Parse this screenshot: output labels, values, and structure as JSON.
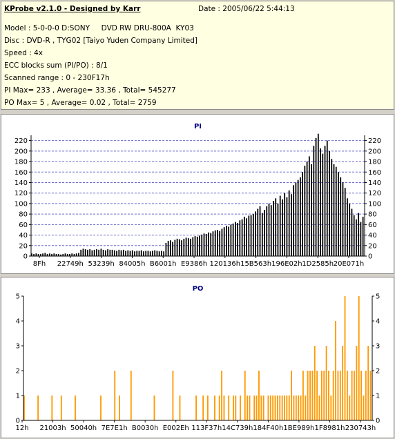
{
  "header": {
    "title": "KProbe v2.1.0 - Designed by Karr",
    "date": "Date : 2005/06/22 5:44:13",
    "lines": [
      "Model : 5-0-0-0 D:SONY     DVD RW DRU-800A  KY03",
      "Disc : DVD-R , TYG02 [Taiyo Yuden Company Limited]",
      "Speed : 4x",
      "ECC blocks sum (PI/PO) : 8/1",
      "Scanned range : 0 - 230F17h",
      "PI Max= 233 , Average= 33.36 , Total= 545277",
      "PO Max= 5 , Average= 0.02 , Total= 2759"
    ]
  },
  "colors": {
    "pi_bars": "#000000",
    "po_bars": "#ff9900",
    "grid": "#6a6acd",
    "info_bg": "#ffffe1",
    "title": "#00007f"
  },
  "chart_data": [
    {
      "type": "bar",
      "title": "PI",
      "xlabel": "",
      "ylabel": "",
      "ylim": [
        0,
        230
      ],
      "yticks": [
        0,
        20,
        40,
        60,
        80,
        100,
        120,
        140,
        160,
        180,
        200,
        220
      ],
      "x_tick_labels": [
        "8Fh",
        "22749h",
        "53239h",
        "84005h",
        "B6001h",
        "E9386h",
        "120136h",
        "15B563h",
        "196E02h",
        "1D2585h",
        "20E071h"
      ],
      "grid": "horizontal dashed",
      "x_range_hex": [
        "0",
        "230F17h"
      ],
      "series": [
        {
          "values": [
            5,
            4,
            5,
            4,
            4,
            5,
            6,
            4,
            5,
            4,
            5,
            4,
            4,
            3,
            4,
            5,
            4,
            4,
            5,
            4,
            5,
            6,
            12,
            14,
            13,
            12,
            13,
            11,
            12,
            13,
            12,
            14,
            12,
            11,
            13,
            12,
            12,
            11,
            10,
            12,
            11,
            12,
            10,
            11,
            10,
            11,
            9,
            10,
            10,
            11,
            9,
            10,
            10,
            9,
            10,
            11,
            10,
            9,
            10,
            9,
            25,
            29,
            30,
            27,
            31,
            33,
            32,
            30,
            33,
            35,
            34,
            33,
            36,
            38,
            37,
            39,
            41,
            43,
            42,
            45,
            44,
            47,
            49,
            50,
            48,
            52,
            55,
            58,
            56,
            60,
            62,
            65,
            63,
            68,
            70,
            75,
            72,
            77,
            78,
            80,
            85,
            90,
            95,
            82,
            88,
            95,
            100,
            97,
            105,
            110,
            100,
            115,
            108,
            120,
            112,
            125,
            118,
            135,
            140,
            145,
            150,
            160,
            172,
            180,
            190,
            175,
            210,
            225,
            233,
            205,
            195,
            210,
            220,
            200,
            185,
            175,
            170,
            160,
            150,
            140,
            130,
            110,
            100,
            90,
            78,
            70,
            82,
            65,
            75
          ]
        }
      ]
    },
    {
      "type": "bar",
      "title": "PO",
      "xlabel": "",
      "ylabel": "",
      "ylim": [
        0,
        5
      ],
      "yticks": [
        0,
        1,
        2,
        3,
        4,
        5
      ],
      "x_tick_labels": [
        "12h",
        "21003h",
        "50040h",
        "7E7E1h",
        "B0030h",
        "E002Eh",
        "113F37h",
        "14C739h",
        "184F40h",
        "1BE989h",
        "1F8981h",
        "230743h"
      ],
      "grid": "none",
      "x_range_hex": [
        "0",
        "230F17h"
      ],
      "series": [
        {
          "values": [
            1,
            0,
            0,
            0,
            0,
            0,
            1,
            0,
            0,
            0,
            0,
            0,
            1,
            0,
            0,
            0,
            1,
            0,
            0,
            0,
            0,
            0,
            1,
            0,
            0,
            0,
            0,
            0,
            0,
            0,
            0,
            0,
            0,
            1,
            0,
            0,
            0,
            0,
            0,
            2,
            0,
            1,
            0,
            0,
            0,
            0,
            2,
            0,
            0,
            0,
            0,
            0,
            0,
            0,
            0,
            0,
            1,
            0,
            0,
            0,
            0,
            0,
            0,
            0,
            2,
            0,
            0,
            1,
            0,
            0,
            0,
            0,
            0,
            0,
            1,
            0,
            0,
            1,
            0,
            1,
            0,
            0,
            1,
            0,
            1,
            2,
            1,
            0,
            1,
            0,
            1,
            1,
            0,
            1,
            0,
            2,
            1,
            1,
            0,
            1,
            1,
            2,
            1,
            1,
            0,
            1,
            1,
            1,
            1,
            1,
            1,
            1,
            1,
            1,
            1,
            2,
            1,
            1,
            1,
            1,
            2,
            1,
            2,
            2,
            2,
            3,
            2,
            1,
            2,
            2,
            3,
            2,
            1,
            2,
            4,
            2,
            2,
            3,
            5,
            2,
            1,
            2,
            2,
            3,
            5,
            2,
            1,
            2,
            3,
            2
          ]
        }
      ]
    }
  ]
}
